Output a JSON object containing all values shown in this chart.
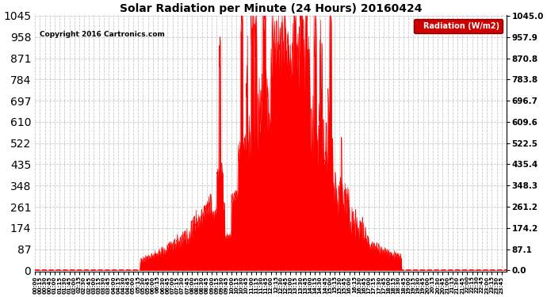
{
  "title": "Solar Radiation per Minute (24 Hours) 20160424",
  "copyright_text": "Copyright 2016 Cartronics.com",
  "legend_label": "Radiation (W/m2)",
  "background_color": "#ffffff",
  "plot_bg_color": "#ffffff",
  "line_color": "#ff0000",
  "fill_color": "#ff0000",
  "legend_bg": "#cc0000",
  "legend_fg": "#ffffff",
  "ytick_labels": [
    "0.0",
    "87.1",
    "174.2",
    "261.2",
    "348.3",
    "435.4",
    "522.5",
    "609.6",
    "696.7",
    "783.8",
    "870.8",
    "957.9",
    "1045.0"
  ],
  "ytick_values": [
    0.0,
    87.1,
    174.2,
    261.2,
    348.3,
    435.4,
    522.5,
    609.6,
    696.7,
    783.8,
    870.8,
    957.9,
    1045.0
  ],
  "ymax": 1045.0,
  "ymin": 0.0,
  "grid_color": "#bbbbbb",
  "grid_style": "--",
  "sunrise_minute": 320,
  "sunset_minute": 1120,
  "solar_noon": 775,
  "xtick_step": 15
}
